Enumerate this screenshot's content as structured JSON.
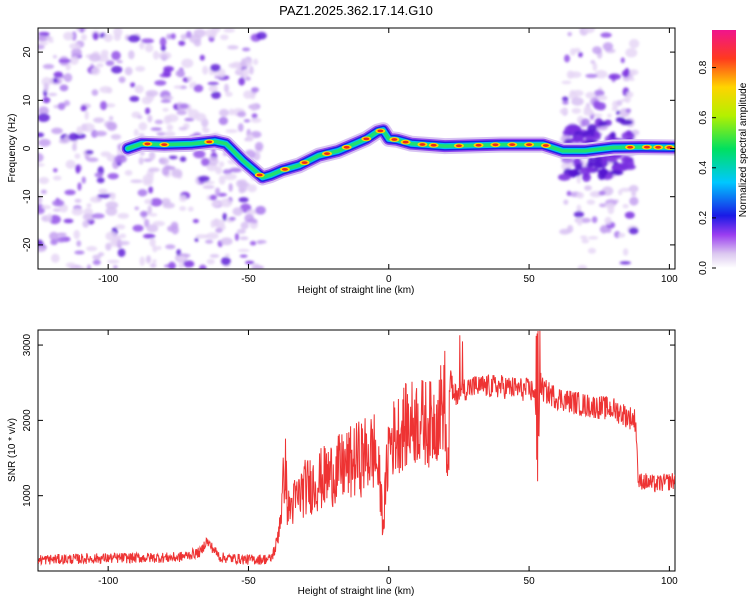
{
  "title": "PAZ1.2025.362.17.14.G10",
  "chart_data": [
    {
      "type": "heatmap",
      "title": "PAZ1.2025.362.17.14.G10",
      "xlabel": "Height of straight line (km)",
      "ylabel": "Frequency (Hz)",
      "xlim": [
        -125,
        102
      ],
      "ylim": [
        -25,
        25
      ],
      "xticks": [
        -100,
        -50,
        0,
        50,
        100
      ],
      "yticks": [
        -20,
        -10,
        0,
        10,
        20
      ],
      "colorbar": {
        "label": "Normalized spectral amplitude",
        "ticks": [
          0.0,
          0.2,
          0.4,
          0.6,
          0.8
        ],
        "tick_labels": [
          "0.0",
          "0.2",
          "0.4",
          "0.6",
          "0.8"
        ],
        "range": [
          0,
          0.95
        ]
      },
      "ridge": {
        "x": [
          -93,
          -88,
          -80,
          -70,
          -62,
          -58,
          -52,
          -48,
          -45,
          -42,
          -38,
          -32,
          -25,
          -18,
          -12,
          -8,
          -4,
          -2,
          0,
          3,
          8,
          20,
          40,
          55,
          62,
          70,
          80,
          90,
          102
        ],
        "freq": [
          0.0,
          1.0,
          0.8,
          1.0,
          1.5,
          1.0,
          -2.5,
          -4.5,
          -6.0,
          -5.5,
          -4.5,
          -3.5,
          -1.5,
          -0.5,
          1.0,
          2.0,
          3.5,
          3.8,
          2.0,
          1.8,
          1.0,
          0.5,
          0.8,
          0.8,
          -0.5,
          -0.5,
          0.2,
          0.3,
          0.2
        ]
      },
      "noise_regions": [
        [
          -125,
          -45
        ],
        [
          62,
          88
        ]
      ]
    },
    {
      "type": "line",
      "xlabel": "Height of straight line (km)",
      "ylabel": "SNR (10 * v/v)",
      "xlim": [
        -125,
        102
      ],
      "ylim": [
        0,
        3200
      ],
      "xticks": [
        -100,
        -50,
        0,
        50,
        100
      ],
      "yticks": [
        1000,
        2000,
        3000
      ],
      "color": "#ee3333",
      "series": [
        {
          "name": "SNR",
          "x": [
            -125,
            -100,
            -75,
            -67,
            -65,
            -60,
            -50,
            -42,
            -40,
            -38,
            -37,
            -36,
            -30,
            -20,
            -10,
            -5,
            -3,
            -2,
            0,
            5,
            10,
            15,
            18,
            20,
            21,
            22,
            23,
            25,
            30,
            40,
            50,
            52,
            53,
            54,
            55,
            60,
            70,
            80,
            88,
            89,
            90,
            95,
            102
          ],
          "y": [
            150,
            170,
            180,
            250,
            400,
            180,
            150,
            160,
            350,
            900,
            1500,
            800,
            1100,
            1300,
            1500,
            1600,
            1100,
            600,
            1700,
            1900,
            2000,
            1950,
            2100,
            2300,
            1200,
            2600,
            2300,
            2400,
            2450,
            2450,
            2400,
            2400,
            1200,
            2500,
            2400,
            2300,
            2200,
            2150,
            2000,
            1150,
            1200,
            1150,
            1200
          ]
        }
      ]
    }
  ]
}
